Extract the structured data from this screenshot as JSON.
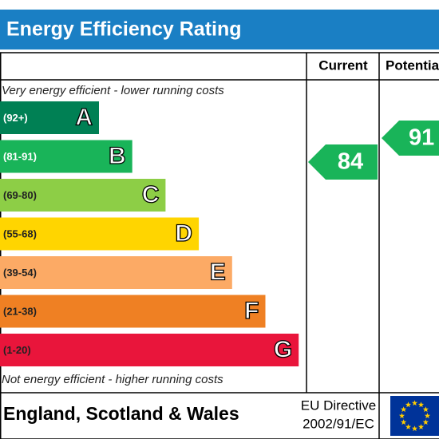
{
  "header": {
    "title": "Energy Efficiency Rating"
  },
  "columns": {
    "current": "Current",
    "potential": "Potential"
  },
  "top_note": "Very energy efficient - lower running costs",
  "bottom_note": "Not energy efficient - higher running costs",
  "bands": [
    {
      "range": "(92+)",
      "letter": "A",
      "color": "#008054"
    },
    {
      "range": "(81-91)",
      "letter": "B",
      "color": "#19b459"
    },
    {
      "range": "(69-80)",
      "letter": "C",
      "color": "#8dce46"
    },
    {
      "range": "(55-68)",
      "letter": "D",
      "color": "#ffd500"
    },
    {
      "range": "(39-54)",
      "letter": "E",
      "color": "#fcaa65"
    },
    {
      "range": "(21-38)",
      "letter": "F",
      "color": "#ef8023"
    },
    {
      "range": "(1-20)",
      "letter": "G",
      "color": "#e9153b"
    }
  ],
  "ratings": {
    "current": "84",
    "potential": "91"
  },
  "footer": {
    "region": "England, Scotland & Wales",
    "directive_line1": "EU Directive",
    "directive_line2": "2002/91/EC"
  }
}
